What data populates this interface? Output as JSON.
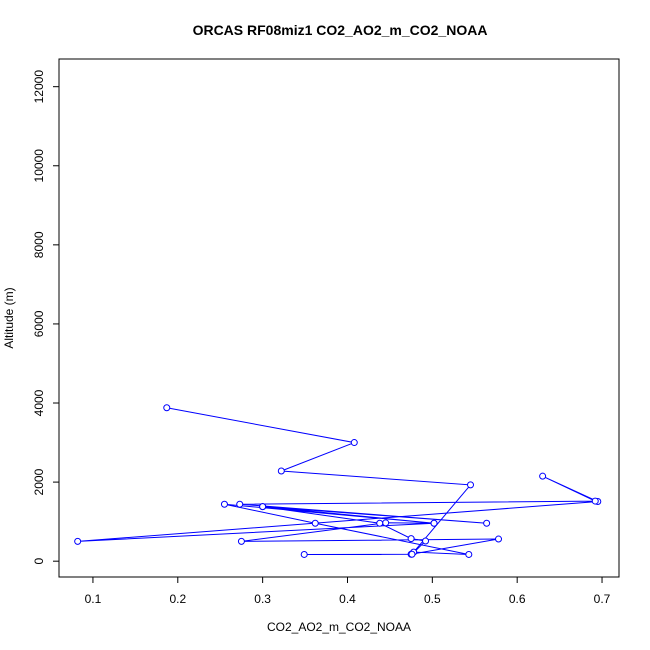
{
  "chart_data": {
    "type": "line",
    "title": "ORCAS RF08miz1 CO2_AO2_m_CO2_NOAA",
    "xlabel": "CO2_AO2_m_CO2_NOAA",
    "ylabel": "Altitude (m)",
    "xlim": [
      0.06,
      0.72
    ],
    "ylim": [
      -400,
      12700
    ],
    "x_ticks": [
      0.1,
      0.2,
      0.3,
      0.4,
      0.5,
      0.6,
      0.7
    ],
    "x_tick_labels": [
      "0.1",
      "0.2",
      "0.3",
      "0.4",
      "0.5",
      "0.6",
      "0.7"
    ],
    "y_ticks": [
      0,
      2000,
      4000,
      6000,
      8000,
      10000,
      12000
    ],
    "y_tick_labels": [
      "0",
      "2000",
      "4000",
      "6000",
      "8000",
      "10000",
      "12000"
    ],
    "grid": false,
    "series": [
      {
        "color": "#0000ff",
        "marker": "open-circle",
        "points": [
          [
            0.187,
            3880
          ],
          [
            0.408,
            3000
          ],
          [
            0.322,
            2280
          ],
          [
            0.545,
            1930
          ],
          [
            0.478,
            230
          ],
          [
            0.543,
            170
          ],
          [
            0.362,
            960
          ],
          [
            0.255,
            1440
          ],
          [
            0.502,
            960
          ],
          [
            0.082,
            500
          ],
          [
            0.695,
            1510
          ],
          [
            0.63,
            2150
          ],
          [
            0.692,
            1520
          ],
          [
            0.273,
            1440
          ],
          [
            0.564,
            960
          ],
          [
            0.3,
            1380
          ],
          [
            0.502,
            960
          ],
          [
            0.445,
            970
          ],
          [
            0.275,
            500
          ],
          [
            0.578,
            560
          ],
          [
            0.475,
            175
          ],
          [
            0.349,
            170
          ],
          [
            0.476,
            175
          ],
          [
            0.492,
            510
          ],
          [
            0.475,
            570
          ],
          [
            0.438,
            960
          ],
          [
            0.3,
            1380
          ]
        ]
      }
    ]
  }
}
